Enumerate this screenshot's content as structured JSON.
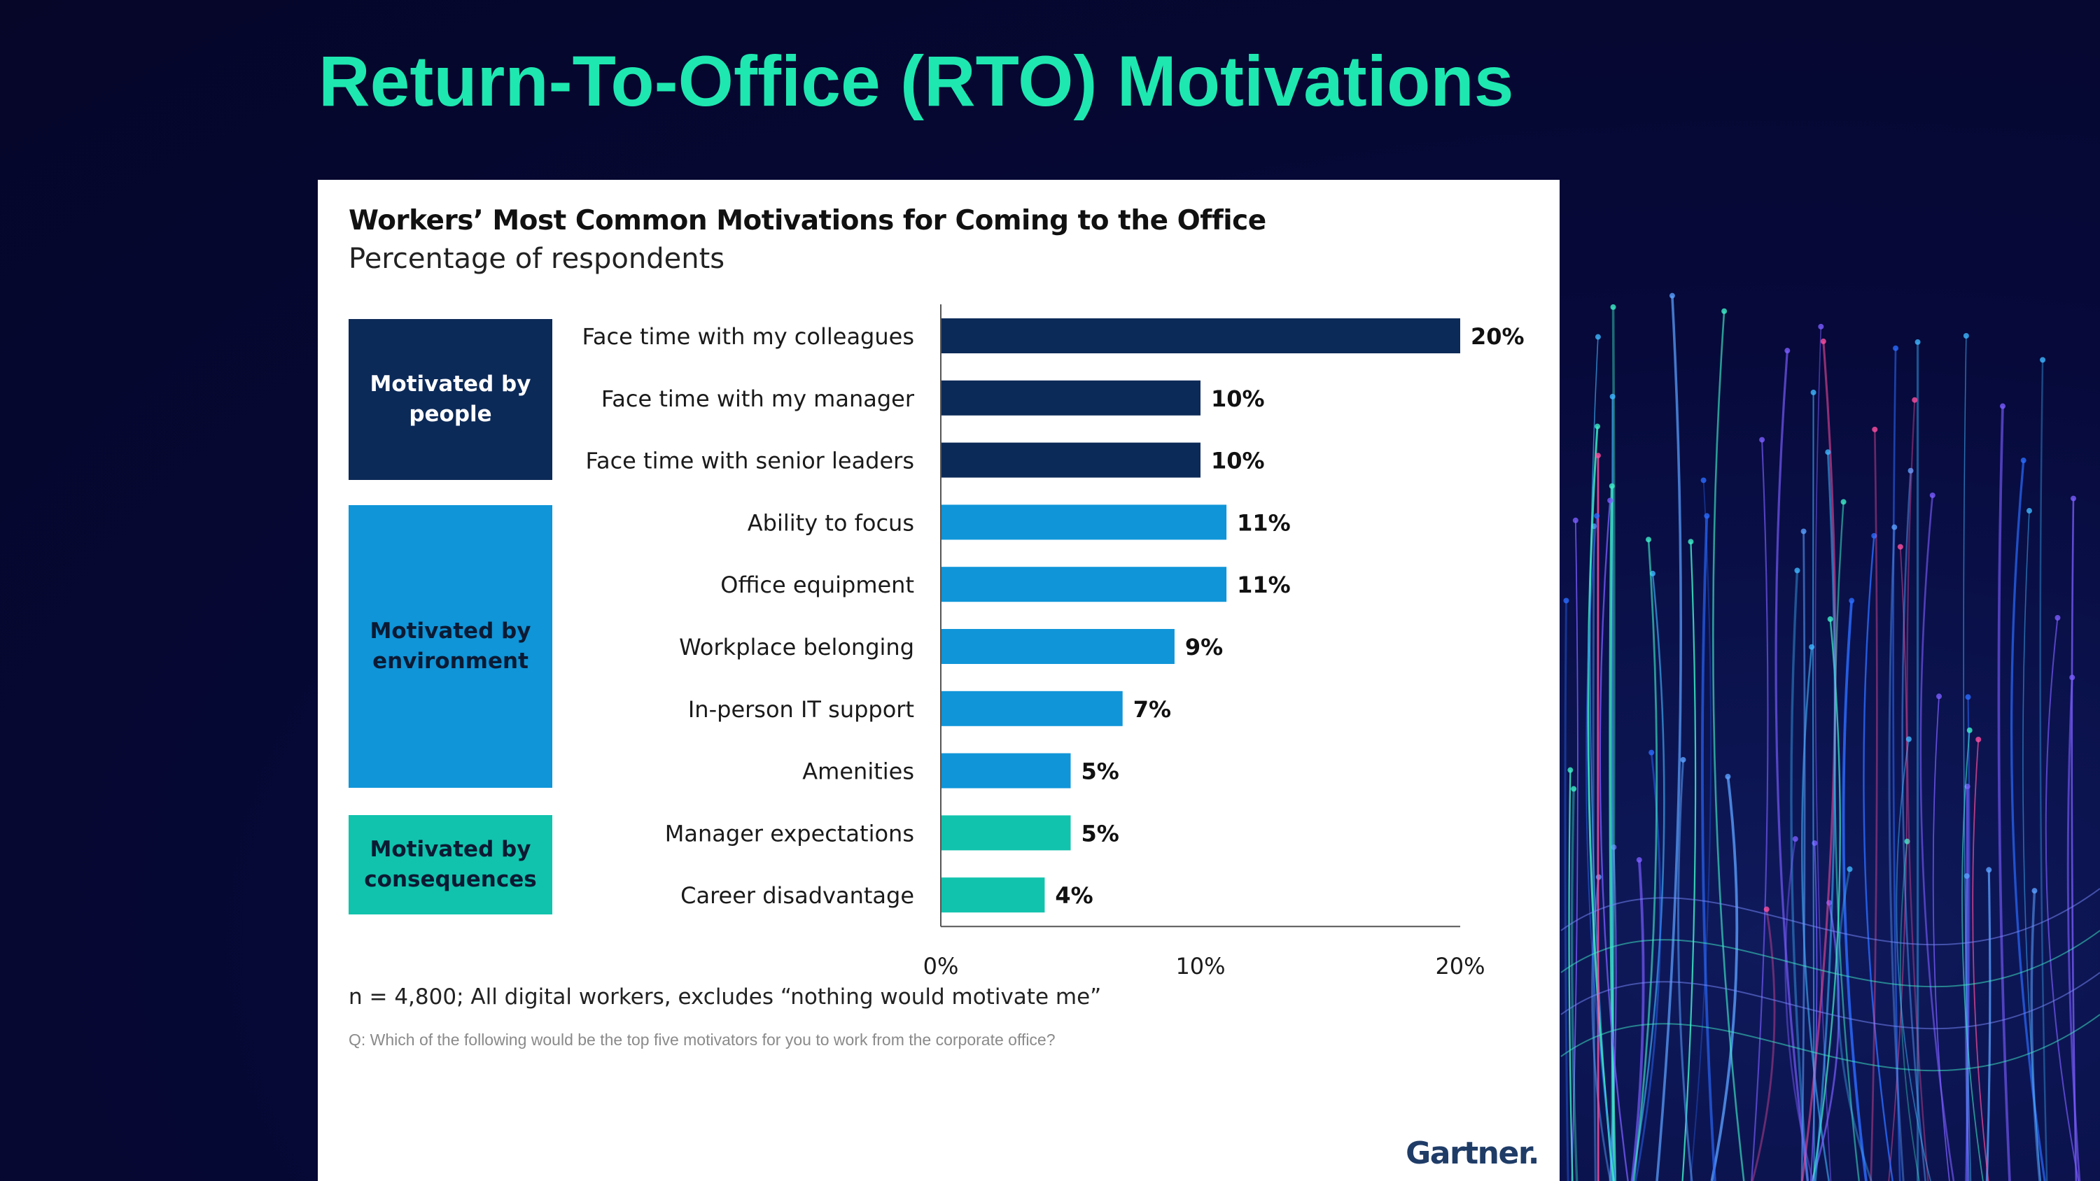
{
  "slide": {
    "title": "Return-To-Office (RTO) Motivations"
  },
  "colors": {
    "title": "#1ee8b0",
    "people": "#0c2a58",
    "environment": "#0f95d8",
    "consequences": "#11c3ad"
  },
  "groups": {
    "people": "Motivated by people",
    "environment": "Motivated by environment",
    "consequences": "Motivated by consequences"
  },
  "chart_data": {
    "type": "bar",
    "orientation": "horizontal",
    "title": "Workers’ Most Common Motivations for Coming to the Office",
    "subtitle": "Percentage of respondents",
    "categories": [
      "Face time with my colleagues",
      "Face time with my manager",
      "Face time with senior leaders",
      "Ability to focus",
      "Office equipment",
      "Workplace belonging",
      "In-person IT support",
      "Amenities",
      "Manager expectations",
      "Career disadvantage"
    ],
    "values": [
      20,
      10,
      10,
      11,
      11,
      9,
      7,
      5,
      5,
      4
    ],
    "value_labels": [
      "20%",
      "10%",
      "10%",
      "11%",
      "11%",
      "9%",
      "7%",
      "5%",
      "5%",
      "4%"
    ],
    "group": [
      "people",
      "people",
      "people",
      "environment",
      "environment",
      "environment",
      "environment",
      "environment",
      "consequences",
      "consequences"
    ],
    "xlim": [
      0,
      20
    ],
    "xticks": [
      0,
      10,
      20
    ],
    "xtick_labels": [
      "0%",
      "10%",
      "20%"
    ],
    "xlabel": "",
    "ylabel": ""
  },
  "footnote": "n = 4,800; All digital workers, excludes “nothing would motivate me”",
  "question": "Q: Which of the following would be the top five motivators for you to work from the corporate office?",
  "logo": "Gartner."
}
